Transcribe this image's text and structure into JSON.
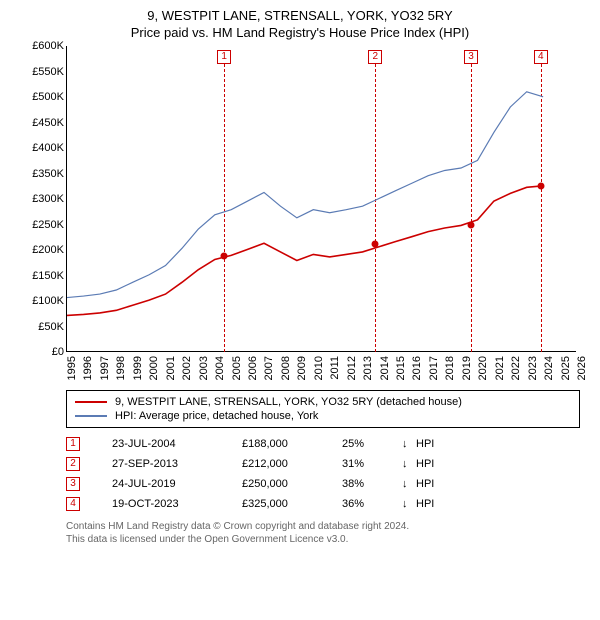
{
  "title": "9, WESTPIT LANE, STRENSALL, YORK, YO32 5RY",
  "subtitle": "Price paid vs. HM Land Registry's House Price Index (HPI)",
  "chart": {
    "type": "line",
    "background_color": "#ffffff",
    "ylim": [
      0,
      600000
    ],
    "ytick_step": 50000,
    "ytick_labels": [
      "£0",
      "£50K",
      "£100K",
      "£150K",
      "£200K",
      "£250K",
      "£300K",
      "£350K",
      "£400K",
      "£450K",
      "£500K",
      "£550K",
      "£600K"
    ],
    "xlim": [
      1995,
      2026
    ],
    "xtick_step": 1,
    "xtick_labels": [
      "1995",
      "1996",
      "1997",
      "1998",
      "1999",
      "2000",
      "2001",
      "2002",
      "2003",
      "2004",
      "2005",
      "2006",
      "2007",
      "2008",
      "2009",
      "2010",
      "2011",
      "2012",
      "2013",
      "2014",
      "2015",
      "2016",
      "2017",
      "2018",
      "2019",
      "2020",
      "2021",
      "2022",
      "2023",
      "2024",
      "2025",
      "2026"
    ],
    "grid_color": "#e0e0e0",
    "axis_color": "#000000",
    "label_fontsize": 11,
    "vline_color": "#cc0000",
    "vline_dash": "3,3",
    "series": [
      {
        "name": "hpi",
        "label": "HPI: Average price, detached house, York",
        "color": "#5b7bb4",
        "line_width": 1.2,
        "x": [
          1995,
          1996,
          1997,
          1998,
          1999,
          2000,
          2001,
          2002,
          2003,
          2004,
          2005,
          2006,
          2007,
          2008,
          2009,
          2010,
          2011,
          2012,
          2013,
          2014,
          2015,
          2016,
          2017,
          2018,
          2019,
          2020,
          2021,
          2022,
          2023,
          2024
        ],
        "y": [
          105000,
          108000,
          112000,
          120000,
          135000,
          150000,
          168000,
          202000,
          240000,
          268000,
          278000,
          295000,
          312000,
          285000,
          262000,
          278000,
          272000,
          278000,
          285000,
          300000,
          315000,
          330000,
          345000,
          355000,
          360000,
          375000,
          430000,
          480000,
          510000,
          500000
        ]
      },
      {
        "name": "property",
        "label": "9, WESTPIT LANE, STRENSALL, YORK, YO32 5RY (detached house)",
        "color": "#cc0000",
        "line_width": 1.6,
        "x": [
          1995,
          1996,
          1997,
          1998,
          1999,
          2000,
          2001,
          2002,
          2003,
          2004,
          2005,
          2006,
          2007,
          2008,
          2009,
          2010,
          2011,
          2012,
          2013,
          2014,
          2015,
          2016,
          2017,
          2018,
          2019,
          2020,
          2021,
          2022,
          2023,
          2024
        ],
        "y": [
          70000,
          72000,
          75000,
          80000,
          90000,
          100000,
          112000,
          135000,
          160000,
          180000,
          188000,
          200000,
          212000,
          195000,
          178000,
          190000,
          185000,
          190000,
          195000,
          205000,
          215000,
          225000,
          235000,
          242000,
          247000,
          258000,
          295000,
          310000,
          322000,
          325000
        ]
      }
    ],
    "markers": [
      {
        "n": "1",
        "year": 2004.55,
        "value": 188000
      },
      {
        "n": "2",
        "year": 2013.74,
        "value": 212000
      },
      {
        "n": "3",
        "year": 2019.56,
        "value": 250000
      },
      {
        "n": "4",
        "year": 2023.8,
        "value": 325000
      }
    ],
    "marker_box_color": "#cc0000",
    "dot_color": "#cc0000",
    "dot_size": 7
  },
  "legend": {
    "series1_label": "9, WESTPIT LANE, STRENSALL, YORK, YO32 5RY (detached house)",
    "series1_color": "#cc0000",
    "series2_label": "HPI: Average price, detached house, York",
    "series2_color": "#5b7bb4"
  },
  "transactions": [
    {
      "n": "1",
      "date": "23-JUL-2004",
      "price": "£188,000",
      "pct": "25%",
      "arrow": "↓",
      "vs": "HPI"
    },
    {
      "n": "2",
      "date": "27-SEP-2013",
      "price": "£212,000",
      "pct": "31%",
      "arrow": "↓",
      "vs": "HPI"
    },
    {
      "n": "3",
      "date": "24-JUL-2019",
      "price": "£250,000",
      "pct": "38%",
      "arrow": "↓",
      "vs": "HPI"
    },
    {
      "n": "4",
      "date": "19-OCT-2023",
      "price": "£325,000",
      "pct": "36%",
      "arrow": "↓",
      "vs": "HPI"
    }
  ],
  "footer": {
    "line1": "Contains HM Land Registry data © Crown copyright and database right 2024.",
    "line2": "This data is licensed under the Open Government Licence v3.0."
  }
}
